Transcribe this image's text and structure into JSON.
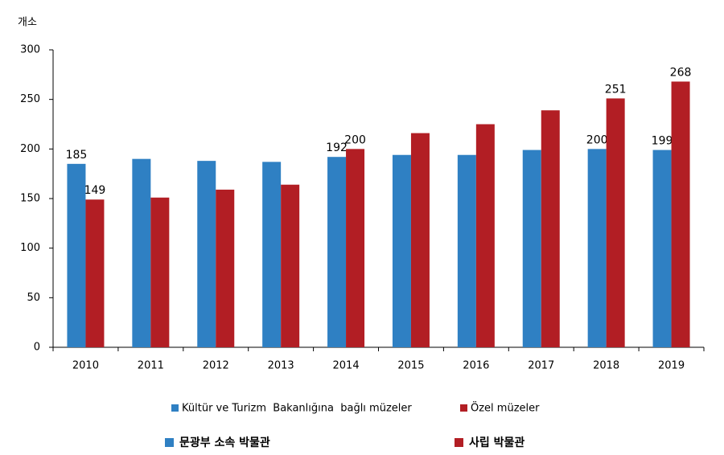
{
  "chart_data": {
    "type": "bar",
    "y_label": "개소",
    "categories": [
      "2010",
      "2011",
      "2012",
      "2013",
      "2014",
      "2015",
      "2016",
      "2017",
      "2018",
      "2019"
    ],
    "series": [
      {
        "name": "Kültür ve Turizm  Bakanlığına  bağlı müzeler",
        "color": "#2f80c3",
        "values": [
          185,
          190,
          188,
          187,
          192,
          194,
          194,
          199,
          200,
          199
        ],
        "value_labels": [
          "185",
          null,
          null,
          null,
          "192",
          null,
          null,
          null,
          "200",
          "199"
        ]
      },
      {
        "name": "Özel müzeler",
        "color": "#b21e24",
        "values": [
          149,
          151,
          159,
          164,
          200,
          216,
          225,
          239,
          251,
          268
        ],
        "value_labels": [
          "149",
          null,
          null,
          null,
          "200",
          null,
          null,
          null,
          "251",
          "268"
        ]
      }
    ],
    "secondary_legend": [
      "문광부 소속 박물관",
      "사립 박물관"
    ],
    "ylim": [
      0,
      300
    ],
    "yticks": [
      0,
      50,
      100,
      150,
      200,
      250,
      300
    ],
    "grid": false
  }
}
